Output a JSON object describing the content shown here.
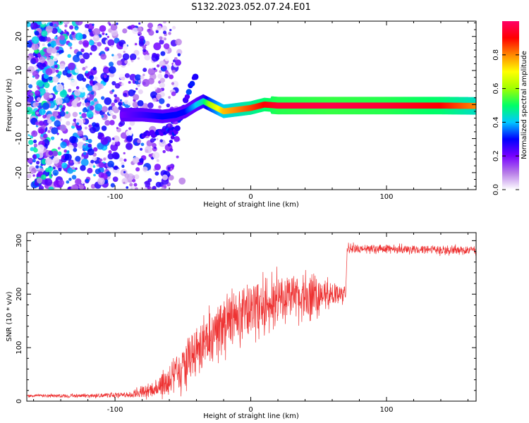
{
  "figure_title": "S132.2023.052.07.24.E01",
  "chart_data": [
    {
      "type": "heatmap",
      "title": "S132.2023.052.07.24.E01",
      "xlabel": "Height of straight line (km)",
      "ylabel": "Frequency (Hz)",
      "xlim": [
        -165,
        166
      ],
      "ylim": [
        -25,
        24.5
      ],
      "xticks": [
        -100,
        0,
        100
      ],
      "yticks": [
        -20,
        -10,
        0,
        10,
        20
      ],
      "colorbar": {
        "label": "Normalized spectral amplitude",
        "range": [
          0,
          1
        ],
        "ticks": [
          "0.0",
          "0.2",
          "0.4",
          "0.6",
          "0.8"
        ],
        "colors": [
          "#ffffff",
          "#b77ce8",
          "#7700ff",
          "#0000ff",
          "#00c8ff",
          "#00ff66",
          "#a0ff00",
          "#ffff00",
          "#ff8800",
          "#ff0000",
          "#ff0066"
        ]
      },
      "ridge": {
        "x": [
          -95,
          -80,
          -65,
          -55,
          -48,
          -40,
          -35,
          -30,
          -20,
          -10,
          0,
          10,
          20,
          60,
          100,
          140,
          166
        ],
        "frequency": [
          -3,
          -3,
          -3.5,
          -3,
          -2,
          0,
          1,
          0,
          -2,
          -1.5,
          -1,
          0,
          -0.3,
          -0.3,
          -0.3,
          -0.3,
          -0.4
        ],
        "amplitude": [
          0.2,
          0.25,
          0.3,
          0.3,
          0.3,
          0.4,
          0.45,
          0.6,
          0.75,
          0.8,
          0.85,
          0.9,
          0.95,
          0.97,
          0.95,
          0.9,
          0.8
        ]
      },
      "branches": [
        {
          "x": [
            -80,
            -70,
            -60,
            -55
          ],
          "frequency": [
            -9,
            -8.5,
            -8,
            -7
          ]
        },
        {
          "x": [
            -60,
            -55,
            -50,
            -45,
            -40
          ],
          "frequency": [
            -12,
            -8,
            -2,
            5,
            9
          ]
        }
      ]
    },
    {
      "type": "line",
      "xlabel": "Height of straight line (km)",
      "ylabel": "SNR (10 * v/v)",
      "xlim": [
        -165,
        166
      ],
      "ylim": [
        0,
        315
      ],
      "xticks": [
        -100,
        0,
        100
      ],
      "yticks": [
        0,
        100,
        200,
        300
      ],
      "color": "#ee3333",
      "envelope": {
        "x": [
          -165,
          -120,
          -90,
          -75,
          -60,
          -45,
          -30,
          -15,
          0,
          15,
          30,
          45,
          60,
          70,
          71,
          100,
          130,
          166
        ],
        "center": [
          10,
          10,
          12,
          20,
          40,
          80,
          120,
          150,
          170,
          185,
          195,
          200,
          200,
          200,
          285,
          285,
          283,
          282
        ],
        "spread": [
          5,
          6,
          10,
          25,
          60,
          90,
          100,
          100,
          90,
          85,
          80,
          70,
          40,
          25,
          15,
          15,
          15,
          15
        ]
      }
    }
  ]
}
